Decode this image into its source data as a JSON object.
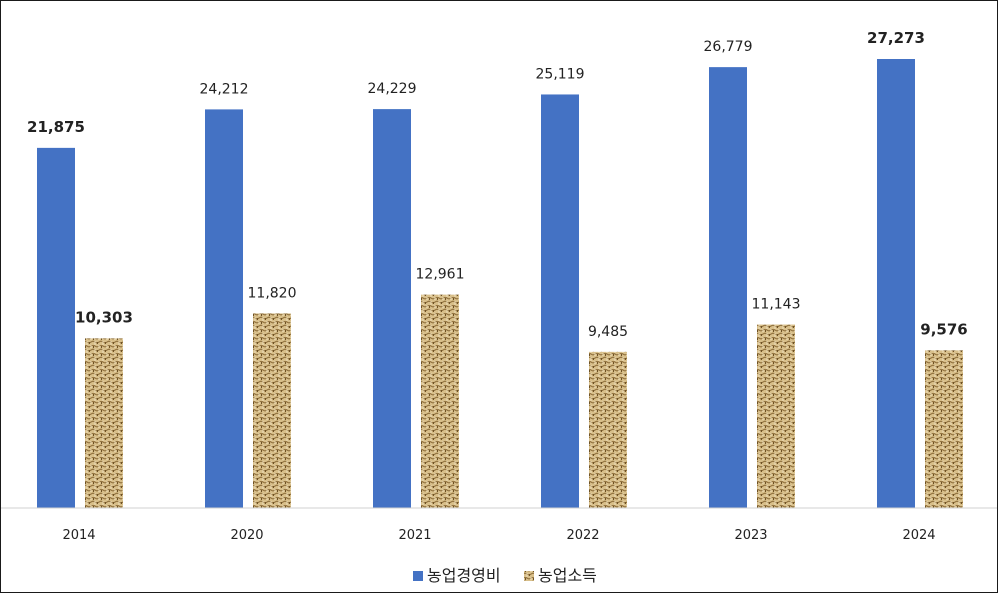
{
  "chart_data": {
    "type": "bar",
    "title": "",
    "xlabel": "",
    "ylabel": "",
    "ylim": [
      0,
      30000
    ],
    "categories": [
      "2014",
      "2020",
      "2021",
      "2022",
      "2023",
      "2024"
    ],
    "series": [
      {
        "name": "농업경영비",
        "color": "#4472c4",
        "values": [
          21875,
          24212,
          24229,
          25119,
          26779,
          27273
        ],
        "labels": [
          "21,875",
          "24,212",
          "24,229",
          "25,119",
          "26,779",
          "27,273"
        ],
        "bold": [
          true,
          false,
          false,
          false,
          false,
          true
        ]
      },
      {
        "name": "농업소득",
        "color": "#c9a86a",
        "pattern": "woven-texture",
        "values": [
          10303,
          11820,
          12961,
          9485,
          11143,
          9576
        ],
        "labels": [
          "10,303",
          "11,820",
          "12,961",
          "9,485",
          "11,143",
          "9,576"
        ],
        "bold": [
          true,
          false,
          false,
          false,
          false,
          true
        ]
      }
    ],
    "grid": false,
    "legend": "bottom-center"
  }
}
